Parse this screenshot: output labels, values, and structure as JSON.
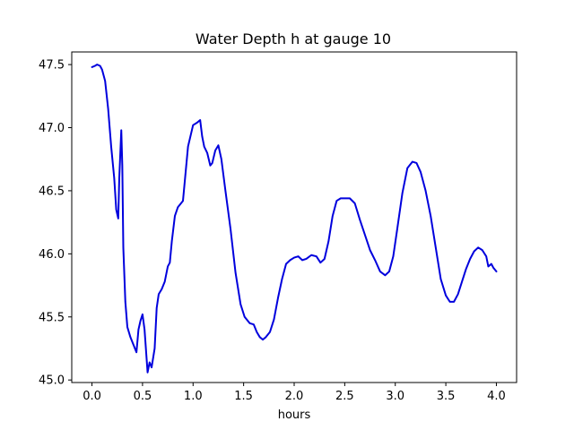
{
  "chart_data": {
    "type": "line",
    "title": "Water Depth h at gauge 10",
    "xlabel": "hours",
    "ylabel": "",
    "xlim": [
      -0.2,
      4.2
    ],
    "ylim": [
      44.98,
      47.6
    ],
    "xticks": [
      0.0,
      0.5,
      1.0,
      1.5,
      2.0,
      2.5,
      3.0,
      3.5,
      4.0
    ],
    "xtick_labels": [
      "0.0",
      "0.5",
      "1.0",
      "1.5",
      "2.0",
      "2.5",
      "3.0",
      "3.5",
      "4.0"
    ],
    "yticks": [
      45.0,
      45.5,
      46.0,
      46.5,
      47.0,
      47.5
    ],
    "ytick_labels": [
      "45.0",
      "45.5",
      "46.0",
      "46.5",
      "47.0",
      "47.5"
    ],
    "grid": false,
    "series": [
      {
        "color": "#0000dd",
        "x": [
          0.0,
          0.03,
          0.05,
          0.08,
          0.1,
          0.13,
          0.16,
          0.19,
          0.22,
          0.24,
          0.26,
          0.27,
          0.29,
          0.3,
          0.31,
          0.33,
          0.35,
          0.38,
          0.41,
          0.44,
          0.46,
          0.48,
          0.5,
          0.52,
          0.55,
          0.57,
          0.59,
          0.62,
          0.64,
          0.66,
          0.69,
          0.72,
          0.75,
          0.77,
          0.79,
          0.82,
          0.85,
          0.9,
          0.95,
          1.0,
          1.04,
          1.07,
          1.09,
          1.11,
          1.14,
          1.17,
          1.19,
          1.22,
          1.25,
          1.28,
          1.32,
          1.37,
          1.42,
          1.47,
          1.51,
          1.56,
          1.6,
          1.63,
          1.66,
          1.69,
          1.72,
          1.76,
          1.8,
          1.84,
          1.88,
          1.92,
          1.96,
          2.0,
          2.04,
          2.08,
          2.12,
          2.17,
          2.22,
          2.26,
          2.3,
          2.34,
          2.38,
          2.42,
          2.46,
          2.5,
          2.55,
          2.6,
          2.65,
          2.7,
          2.75,
          2.8,
          2.85,
          2.9,
          2.94,
          2.98,
          3.02,
          3.07,
          3.12,
          3.17,
          3.21,
          3.25,
          3.3,
          3.35,
          3.4,
          3.45,
          3.5,
          3.54,
          3.58,
          3.62,
          3.66,
          3.7,
          3.74,
          3.78,
          3.82,
          3.86,
          3.9,
          3.92,
          3.95,
          3.97,
          4.0
        ],
        "y": [
          47.48,
          47.49,
          47.5,
          47.49,
          47.46,
          47.37,
          47.15,
          46.85,
          46.6,
          46.35,
          46.28,
          46.6,
          46.98,
          46.7,
          46.05,
          45.62,
          45.42,
          45.34,
          45.28,
          45.22,
          45.4,
          45.47,
          45.52,
          45.4,
          45.06,
          45.14,
          45.1,
          45.25,
          45.57,
          45.68,
          45.72,
          45.78,
          45.9,
          45.93,
          46.1,
          46.3,
          46.37,
          46.42,
          46.85,
          47.02,
          47.04,
          47.06,
          46.93,
          46.85,
          46.8,
          46.7,
          46.72,
          46.82,
          46.86,
          46.75,
          46.5,
          46.2,
          45.85,
          45.6,
          45.5,
          45.45,
          45.44,
          45.38,
          45.34,
          45.32,
          45.34,
          45.38,
          45.48,
          45.65,
          45.8,
          45.92,
          45.95,
          45.97,
          45.98,
          45.95,
          45.96,
          45.99,
          45.98,
          45.93,
          45.96,
          46.1,
          46.3,
          46.42,
          46.44,
          46.44,
          46.44,
          46.4,
          46.27,
          46.15,
          46.03,
          45.95,
          45.86,
          45.83,
          45.86,
          45.98,
          46.2,
          46.48,
          46.68,
          46.73,
          46.72,
          46.65,
          46.5,
          46.3,
          46.05,
          45.8,
          45.67,
          45.62,
          45.62,
          45.68,
          45.78,
          45.88,
          45.96,
          46.02,
          46.05,
          46.03,
          45.98,
          45.9,
          45.92,
          45.89,
          45.86
        ]
      }
    ]
  }
}
